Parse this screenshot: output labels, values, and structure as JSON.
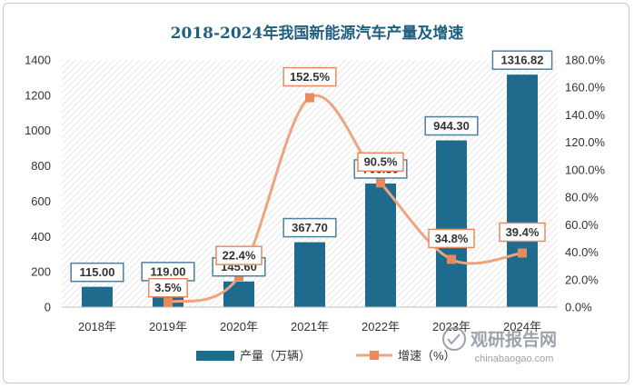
{
  "chart_data": {
    "type": "bar",
    "title": "2018-2024年我国新能源汽车产量及增速",
    "categories": [
      "2018年",
      "2019年",
      "2020年",
      "2021年",
      "2022年",
      "2023年",
      "2024年"
    ],
    "series": [
      {
        "name": "产量（万辆）",
        "type": "bar",
        "axis": "left",
        "values": [
          115.0,
          119.0,
          145.6,
          367.7,
          700.3,
          944.3,
          1316.82
        ],
        "labels": [
          "115.00",
          "119.00",
          "145.60",
          "367.70",
          "700.30",
          "944.30",
          "1316.82"
        ]
      },
      {
        "name": "增速（%）",
        "type": "line",
        "axis": "right",
        "values": [
          null,
          3.5,
          22.4,
          152.5,
          90.5,
          34.8,
          39.4
        ],
        "labels": [
          null,
          "3.5%",
          "22.4%",
          "152.5%",
          "90.5%",
          "34.8%",
          "39.4%"
        ]
      }
    ],
    "y_left": {
      "min": 0,
      "max": 1400,
      "step": 200,
      "ticks": [
        "0",
        "200",
        "400",
        "600",
        "800",
        "1000",
        "1200",
        "1400"
      ]
    },
    "y_right": {
      "min": 0,
      "max": 180,
      "step": 20,
      "ticks": [
        "0.0%",
        "20.0%",
        "40.0%",
        "60.0%",
        "80.0%",
        "100.0%",
        "120.0%",
        "140.0%",
        "160.0%",
        "180.0%"
      ]
    },
    "legend_position": "bottom",
    "grid": false
  },
  "colors": {
    "bar": "#1f6b8e",
    "line": "#eea47f",
    "marker": "#e88a5e",
    "title": "#1f5f80",
    "label_border_bar": "#4f7f9f",
    "label_border_line": "#e88a5e"
  },
  "watermark": {
    "cn": "观研报告网",
    "en": "chinabaogao.com"
  }
}
